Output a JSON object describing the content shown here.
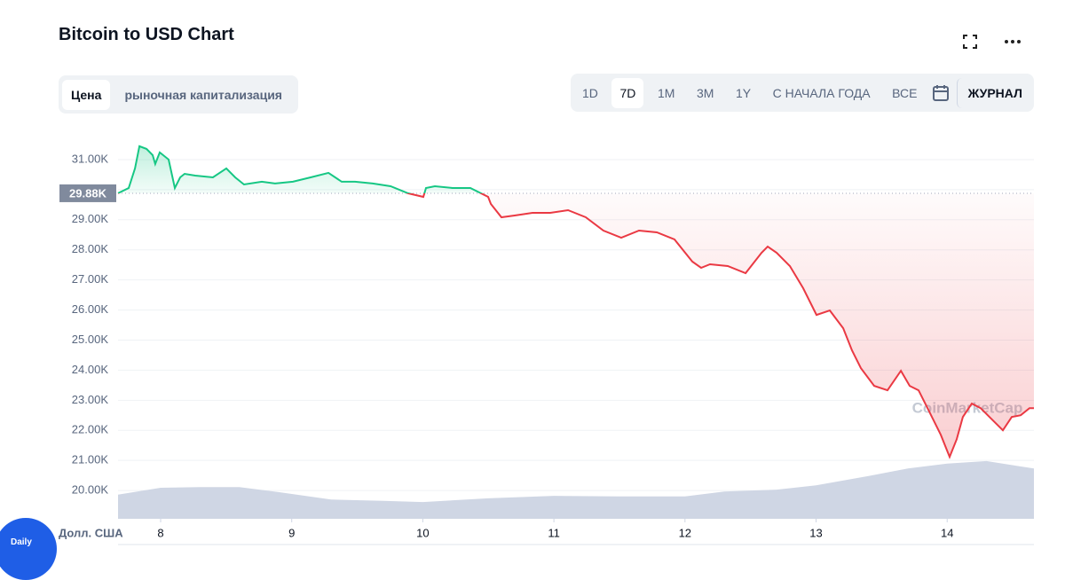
{
  "header": {
    "title": "Bitcoin to USD Chart"
  },
  "toolbar": {
    "tabs": [
      "Цена",
      "рыночная капитализация"
    ],
    "ranges": [
      "1D",
      "7D",
      "1M",
      "3M",
      "1Y",
      "С НАЧАЛА ГОДА",
      "ВСЕ"
    ],
    "journal": "ЖУРНАЛ"
  },
  "badge": "Daily",
  "chart_data": {
    "type": "line",
    "y_unit_label": "Долл. США",
    "watermark": "CoinMarketCap",
    "x": [
      7.675,
      7.756,
      7.804,
      7.838,
      7.892,
      7.939,
      7.959,
      7.993,
      8.061,
      8.108,
      8.149,
      8.183,
      8.264,
      8.399,
      8.501,
      8.569,
      8.636,
      8.772,
      8.873,
      9.009,
      9.144,
      9.28,
      9.381,
      9.483,
      9.618,
      9.754,
      9.889,
      10.004,
      10.024,
      10.092,
      10.227,
      10.363,
      10.498,
      10.519,
      10.6,
      10.701,
      10.837,
      10.972,
      11.108,
      11.243,
      11.378,
      11.514,
      11.649,
      11.785,
      11.92,
      12.056,
      12.123,
      12.191,
      12.326,
      12.462,
      12.584,
      12.631,
      12.699,
      12.8,
      12.902,
      13.003,
      13.105,
      13.207,
      13.274,
      13.342,
      13.443,
      13.545,
      13.647,
      13.714,
      13.782,
      13.85,
      13.951,
      14.019,
      14.073,
      14.12,
      14.188,
      14.255,
      14.323,
      14.425,
      14.493,
      14.561,
      14.628,
      14.662
    ],
    "values": [
      29880,
      30056,
      30705,
      31443,
      31354,
      31148,
      30853,
      31236,
      31000,
      30056,
      30410,
      30528,
      30469,
      30410,
      30705,
      30410,
      30174,
      30263,
      30204,
      30263,
      30410,
      30558,
      30263,
      30263,
      30204,
      30115,
      29879,
      29761,
      30056,
      30115,
      30056,
      30056,
      29761,
      29525,
      29083,
      29142,
      29230,
      29230,
      29319,
      29083,
      28640,
      28404,
      28640,
      28581,
      28345,
      27608,
      27401,
      27519,
      27460,
      27224,
      27903,
      28109,
      27903,
      27460,
      26723,
      25838,
      25985,
      25395,
      24658,
      24068,
      23478,
      23330,
      23979,
      23478,
      23330,
      22740,
      21855,
      21118,
      21708,
      22445,
      22888,
      22740,
      22445,
      22003,
      22445,
      22504,
      22740,
      22740
    ],
    "up_color": "#16c784",
    "down_color": "#ea3943",
    "reference": {
      "value": 29880,
      "label": "29.88K"
    },
    "xlim": [
      7.675,
      14.662
    ],
    "xticks": [
      8,
      9,
      10,
      11,
      12,
      13,
      14
    ],
    "ylim": [
      19060,
      32030
    ],
    "yticks": [
      {
        "value": 20000,
        "label": "20.00K"
      },
      {
        "value": 21000,
        "label": "21.00K"
      },
      {
        "value": 22000,
        "label": "22.00K"
      },
      {
        "value": 23000,
        "label": "23.00K"
      },
      {
        "value": 24000,
        "label": "24.00K"
      },
      {
        "value": 25000,
        "label": "25.00K"
      },
      {
        "value": 26000,
        "label": "26.00K"
      },
      {
        "value": 27000,
        "label": "27.00K"
      },
      {
        "value": 28000,
        "label": "28.00K"
      },
      {
        "value": 29000,
        "label": "29.00K"
      },
      {
        "value": 30000,
        "label": "30.00K"
      },
      {
        "value": 31000,
        "label": "31.00K"
      }
    ],
    "grid": true,
    "volume": {
      "color": "#cfd6e4",
      "y2lim": [
        0,
        100
      ],
      "x": [
        7.675,
        8.0,
        8.3,
        8.6,
        8.9,
        9.3,
        9.7,
        10.0,
        10.5,
        11.0,
        11.5,
        12.0,
        12.3,
        12.7,
        13.0,
        13.4,
        13.7,
        14.0,
        14.3,
        14.662
      ],
      "values": [
        39,
        50,
        51,
        51,
        43,
        31,
        29,
        27,
        33,
        37,
        36,
        36,
        44,
        47,
        54,
        69,
        81,
        89,
        93,
        81
      ]
    }
  }
}
